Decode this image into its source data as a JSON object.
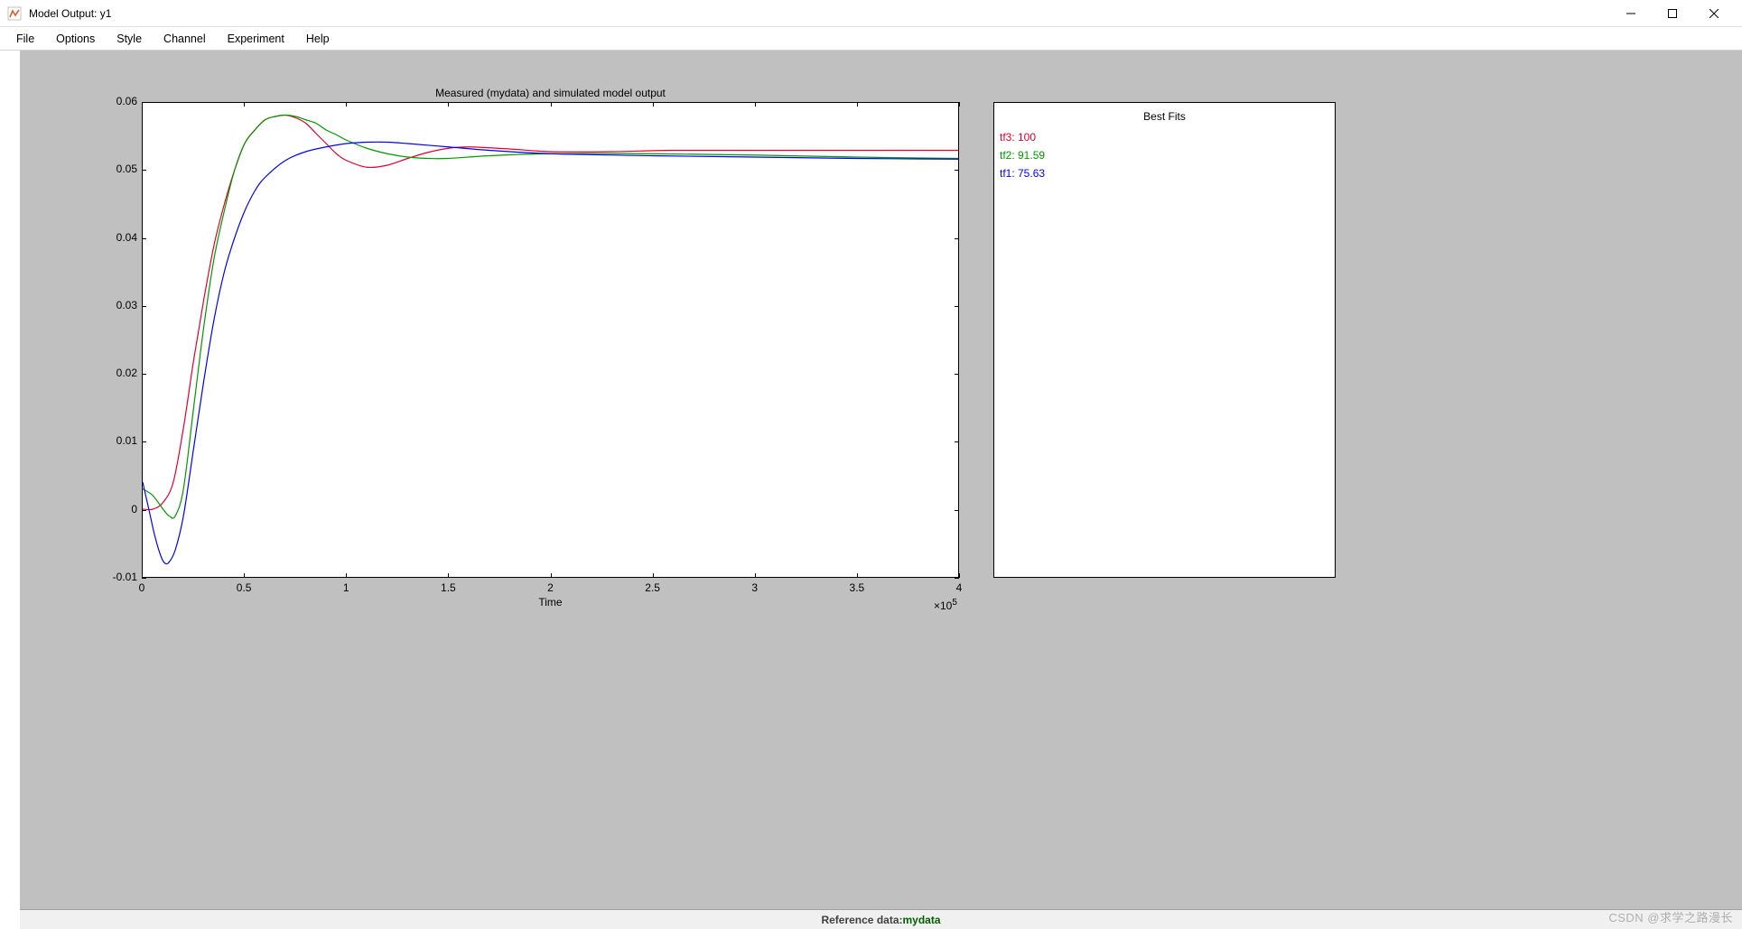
{
  "window": {
    "title": "Model Output: y1",
    "icon_color": "#d85f2a"
  },
  "menu": {
    "items": [
      "File",
      "Options",
      "Style",
      "Channel",
      "Experiment",
      "Help"
    ]
  },
  "chart": {
    "type": "line",
    "title": "Measured (mydata) and simulated model output",
    "xlabel": "Time",
    "x_exponent_label": "×10",
    "x_exponent_sup": "5",
    "xlim": [
      0,
      4
    ],
    "ylim": [
      -0.01,
      0.06
    ],
    "xticks": [
      0,
      0.5,
      1,
      1.5,
      2,
      2.5,
      3,
      3.5,
      4
    ],
    "xtick_labels": [
      "0",
      "0.5",
      "1",
      "1.5",
      "2",
      "2.5",
      "3",
      "3.5",
      "4"
    ],
    "yticks": [
      -0.01,
      0,
      0.01,
      0.02,
      0.03,
      0.04,
      0.05,
      0.06
    ],
    "ytick_labels": [
      "-0.01",
      "0",
      "0.01",
      "0.02",
      "0.03",
      "0.04",
      "0.05",
      "0.06"
    ],
    "background_color": "#ffffff",
    "axis_color": "#000000",
    "line_width": 1.2,
    "label_fontsize": 12,
    "series": [
      {
        "name": "tf3",
        "color": "#e4002b",
        "points": [
          [
            0.0,
            0.0
          ],
          [
            0.05,
            0.0
          ],
          [
            0.1,
            0.001
          ],
          [
            0.15,
            0.004
          ],
          [
            0.2,
            0.012
          ],
          [
            0.25,
            0.022
          ],
          [
            0.3,
            0.031
          ],
          [
            0.35,
            0.039
          ],
          [
            0.4,
            0.045
          ],
          [
            0.45,
            0.05
          ],
          [
            0.5,
            0.054
          ],
          [
            0.55,
            0.056
          ],
          [
            0.6,
            0.0575
          ],
          [
            0.65,
            0.058
          ],
          [
            0.7,
            0.0582
          ],
          [
            0.75,
            0.0578
          ],
          [
            0.8,
            0.057
          ],
          [
            0.85,
            0.0555
          ],
          [
            0.9,
            0.054
          ],
          [
            0.95,
            0.0525
          ],
          [
            1.0,
            0.0515
          ],
          [
            1.1,
            0.0505
          ],
          [
            1.2,
            0.0508
          ],
          [
            1.3,
            0.0518
          ],
          [
            1.4,
            0.0527
          ],
          [
            1.5,
            0.0533
          ],
          [
            1.6,
            0.0535
          ],
          [
            1.8,
            0.0532
          ],
          [
            2.0,
            0.0528
          ],
          [
            2.3,
            0.0528
          ],
          [
            2.6,
            0.053
          ],
          [
            3.0,
            0.053
          ],
          [
            3.5,
            0.053
          ],
          [
            4.0,
            0.053
          ]
        ]
      },
      {
        "name": "tf2",
        "color": "#009900",
        "points": [
          [
            0.0,
            0.003
          ],
          [
            0.05,
            0.002
          ],
          [
            0.1,
            0.0
          ],
          [
            0.13,
            -0.001
          ],
          [
            0.16,
            -0.001
          ],
          [
            0.2,
            0.003
          ],
          [
            0.25,
            0.015
          ],
          [
            0.3,
            0.027
          ],
          [
            0.35,
            0.037
          ],
          [
            0.4,
            0.044
          ],
          [
            0.45,
            0.05
          ],
          [
            0.5,
            0.054
          ],
          [
            0.55,
            0.056
          ],
          [
            0.6,
            0.0575
          ],
          [
            0.65,
            0.058
          ],
          [
            0.7,
            0.0582
          ],
          [
            0.75,
            0.058
          ],
          [
            0.8,
            0.0575
          ],
          [
            0.85,
            0.057
          ],
          [
            0.9,
            0.056
          ],
          [
            0.95,
            0.0553
          ],
          [
            1.0,
            0.0545
          ],
          [
            1.1,
            0.0533
          ],
          [
            1.2,
            0.0525
          ],
          [
            1.3,
            0.052
          ],
          [
            1.4,
            0.0518
          ],
          [
            1.5,
            0.0518
          ],
          [
            1.7,
            0.0522
          ],
          [
            2.0,
            0.0525
          ],
          [
            2.5,
            0.0525
          ],
          [
            3.0,
            0.0523
          ],
          [
            3.5,
            0.052
          ],
          [
            4.0,
            0.0518
          ]
        ]
      },
      {
        "name": "tf1",
        "color": "#0000ff",
        "points": [
          [
            0.0,
            0.004
          ],
          [
            0.03,
            0.0
          ],
          [
            0.06,
            -0.004
          ],
          [
            0.09,
            -0.007
          ],
          [
            0.11,
            -0.008
          ],
          [
            0.13,
            -0.0078
          ],
          [
            0.16,
            -0.006
          ],
          [
            0.2,
            -0.001
          ],
          [
            0.25,
            0.009
          ],
          [
            0.3,
            0.019
          ],
          [
            0.35,
            0.028
          ],
          [
            0.4,
            0.035
          ],
          [
            0.45,
            0.04
          ],
          [
            0.5,
            0.044
          ],
          [
            0.55,
            0.047
          ],
          [
            0.6,
            0.049
          ],
          [
            0.7,
            0.0515
          ],
          [
            0.8,
            0.0528
          ],
          [
            0.9,
            0.0535
          ],
          [
            1.0,
            0.054
          ],
          [
            1.1,
            0.0542
          ],
          [
            1.2,
            0.0542
          ],
          [
            1.3,
            0.054
          ],
          [
            1.5,
            0.0535
          ],
          [
            1.7,
            0.053
          ],
          [
            2.0,
            0.0525
          ],
          [
            2.5,
            0.0522
          ],
          [
            3.0,
            0.052
          ],
          [
            3.5,
            0.0518
          ],
          [
            4.0,
            0.0517
          ]
        ]
      }
    ]
  },
  "legend": {
    "title": "Best Fits",
    "items": [
      {
        "label": "tf3: 100",
        "color": "#e4002b"
      },
      {
        "label": "tf2: 91.59",
        "color": "#009900"
      },
      {
        "label": "tf1: 75.63",
        "color": "#0000ff"
      }
    ]
  },
  "statusbar": {
    "ref_label": "Reference data:  ",
    "ref_name": "mydata"
  },
  "watermark": "CSDN @求学之路漫长"
}
